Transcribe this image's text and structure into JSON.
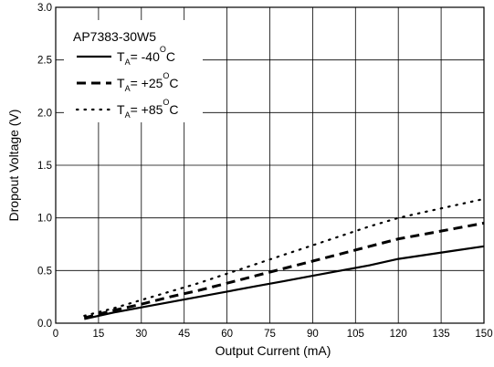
{
  "chart_data": {
    "type": "line",
    "title": "",
    "xlabel": "Output Current (mA)",
    "ylabel": "Dropout Voltage (V)",
    "xlim": [
      0,
      150
    ],
    "ylim": [
      0,
      3.0
    ],
    "xticks": [
      "0",
      "15",
      "30",
      "45",
      "60",
      "75",
      "90",
      "105",
      "120",
      "135",
      "150"
    ],
    "yticks": [
      "0.0",
      "0.5",
      "1.0",
      "1.5",
      "2.0",
      "2.5",
      "3.0"
    ],
    "grid": true,
    "legend_title": "AP7383-30W5",
    "legend_position": "top-left",
    "series": [
      {
        "name": "TA= -40OC",
        "label_main": "T",
        "label_sub": "A",
        "label_mid": "= -40",
        "label_sup": "O",
        "label_end": "C",
        "style": "solid",
        "x": [
          10,
          20,
          30,
          40,
          50,
          60,
          70,
          80,
          90,
          100,
          110,
          120,
          130,
          140,
          150
        ],
        "y": [
          0.04,
          0.1,
          0.15,
          0.2,
          0.25,
          0.3,
          0.35,
          0.4,
          0.45,
          0.5,
          0.55,
          0.61,
          0.65,
          0.69,
          0.73
        ]
      },
      {
        "name": "TA= +25OC",
        "label_main": "T",
        "label_sub": "A",
        "label_mid": "= +25",
        "label_sup": "O",
        "label_end": "C",
        "style": "dashed",
        "x": [
          10,
          20,
          30,
          40,
          50,
          60,
          70,
          80,
          90,
          100,
          110,
          120,
          130,
          140,
          150
        ],
        "y": [
          0.05,
          0.12,
          0.18,
          0.25,
          0.31,
          0.38,
          0.45,
          0.52,
          0.59,
          0.66,
          0.73,
          0.8,
          0.85,
          0.9,
          0.95
        ]
      },
      {
        "name": "TA= +85OC",
        "label_main": "T",
        "label_sub": "A",
        "label_mid": "= +85",
        "label_sup": "O",
        "label_end": "C",
        "style": "dotted",
        "x": [
          10,
          20,
          30,
          40,
          50,
          60,
          70,
          80,
          90,
          100,
          110,
          120,
          130,
          140,
          150
        ],
        "y": [
          0.07,
          0.14,
          0.22,
          0.3,
          0.38,
          0.47,
          0.56,
          0.65,
          0.74,
          0.83,
          0.92,
          1.0,
          1.06,
          1.12,
          1.18
        ]
      }
    ]
  }
}
